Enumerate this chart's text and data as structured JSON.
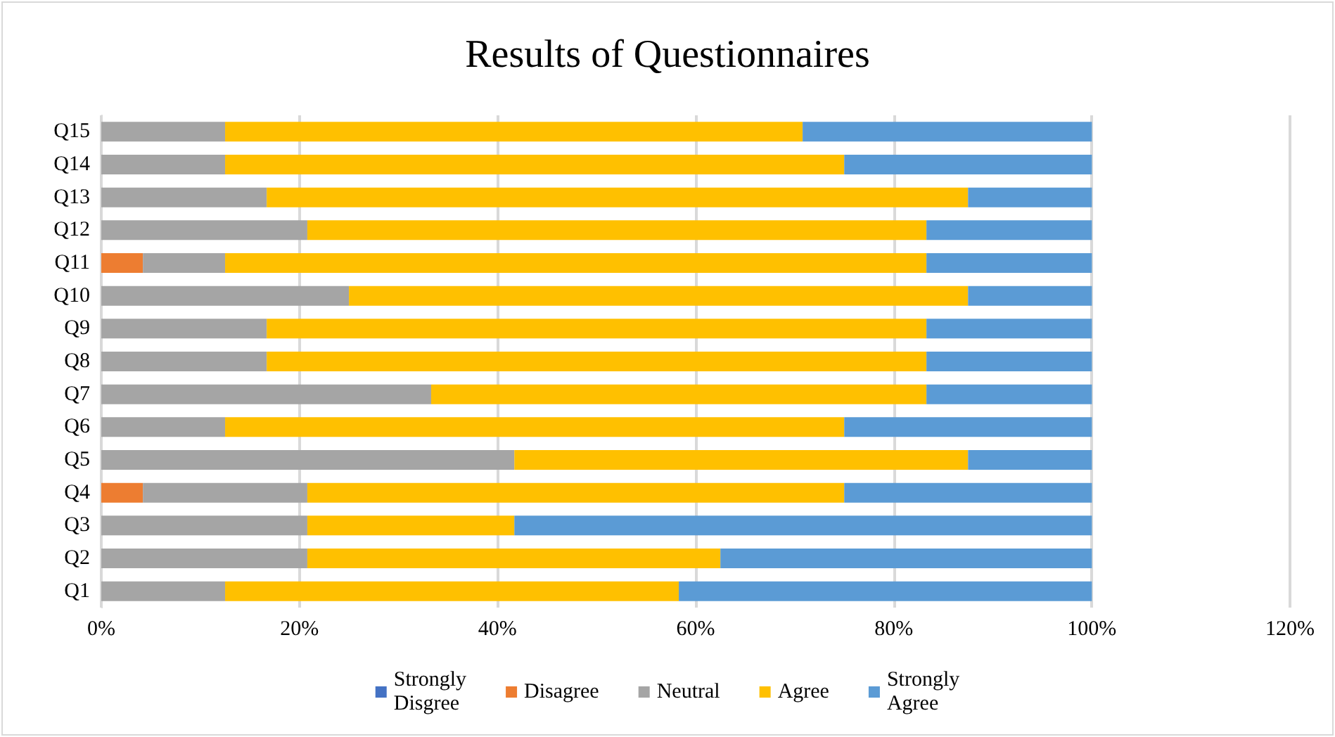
{
  "chart_data": {
    "type": "bar",
    "orientation": "horizontal",
    "stacked": true,
    "title": "Results of Questionnaires",
    "categories": [
      "Q15",
      "Q14",
      "Q13",
      "Q12",
      "Q11",
      "Q10",
      "Q9",
      "Q8",
      "Q7",
      "Q6",
      "Q5",
      "Q4",
      "Q3",
      "Q2",
      "Q1"
    ],
    "series": [
      {
        "name": "Strongly Disgree",
        "color": "#4472c4",
        "values": [
          0,
          0,
          0,
          0,
          0,
          0,
          0,
          0,
          0,
          0,
          0,
          0,
          0,
          0,
          0
        ]
      },
      {
        "name": "Disagree",
        "color": "#ed7d31",
        "values": [
          0,
          0,
          0,
          0,
          4.2,
          0,
          0,
          0,
          0,
          0,
          0,
          4.2,
          0,
          0,
          0
        ]
      },
      {
        "name": "Neutral",
        "color": "#a5a5a5",
        "values": [
          12.5,
          12.5,
          16.7,
          20.8,
          8.3,
          25,
          16.7,
          16.7,
          33.3,
          12.5,
          41.7,
          16.6,
          20.8,
          20.8,
          12.5
        ]
      },
      {
        "name": "Agree",
        "color": "#ffc000",
        "values": [
          58.3,
          62.5,
          70.8,
          62.5,
          70.8,
          62.5,
          66.6,
          66.6,
          50,
          62.5,
          45.8,
          54.2,
          20.9,
          41.7,
          45.8
        ]
      },
      {
        "name": "Strongly Agree",
        "color": "#5b9bd5",
        "values": [
          29.2,
          25,
          12.5,
          16.7,
          16.7,
          12.5,
          16.7,
          16.7,
          16.7,
          25,
          12.5,
          25,
          58.3,
          37.5,
          41.7
        ]
      }
    ],
    "xlim": [
      0,
      120
    ],
    "xticks": [
      {
        "value": 0,
        "label": "0%"
      },
      {
        "value": 20,
        "label": "20%"
      },
      {
        "value": 40,
        "label": "40%"
      },
      {
        "value": 60,
        "label": "60%"
      },
      {
        "value": 80,
        "label": "80%"
      },
      {
        "value": 100,
        "label": "100%"
      },
      {
        "value": 120,
        "label": "120%"
      }
    ],
    "grid": "x",
    "legend": "bottom"
  }
}
